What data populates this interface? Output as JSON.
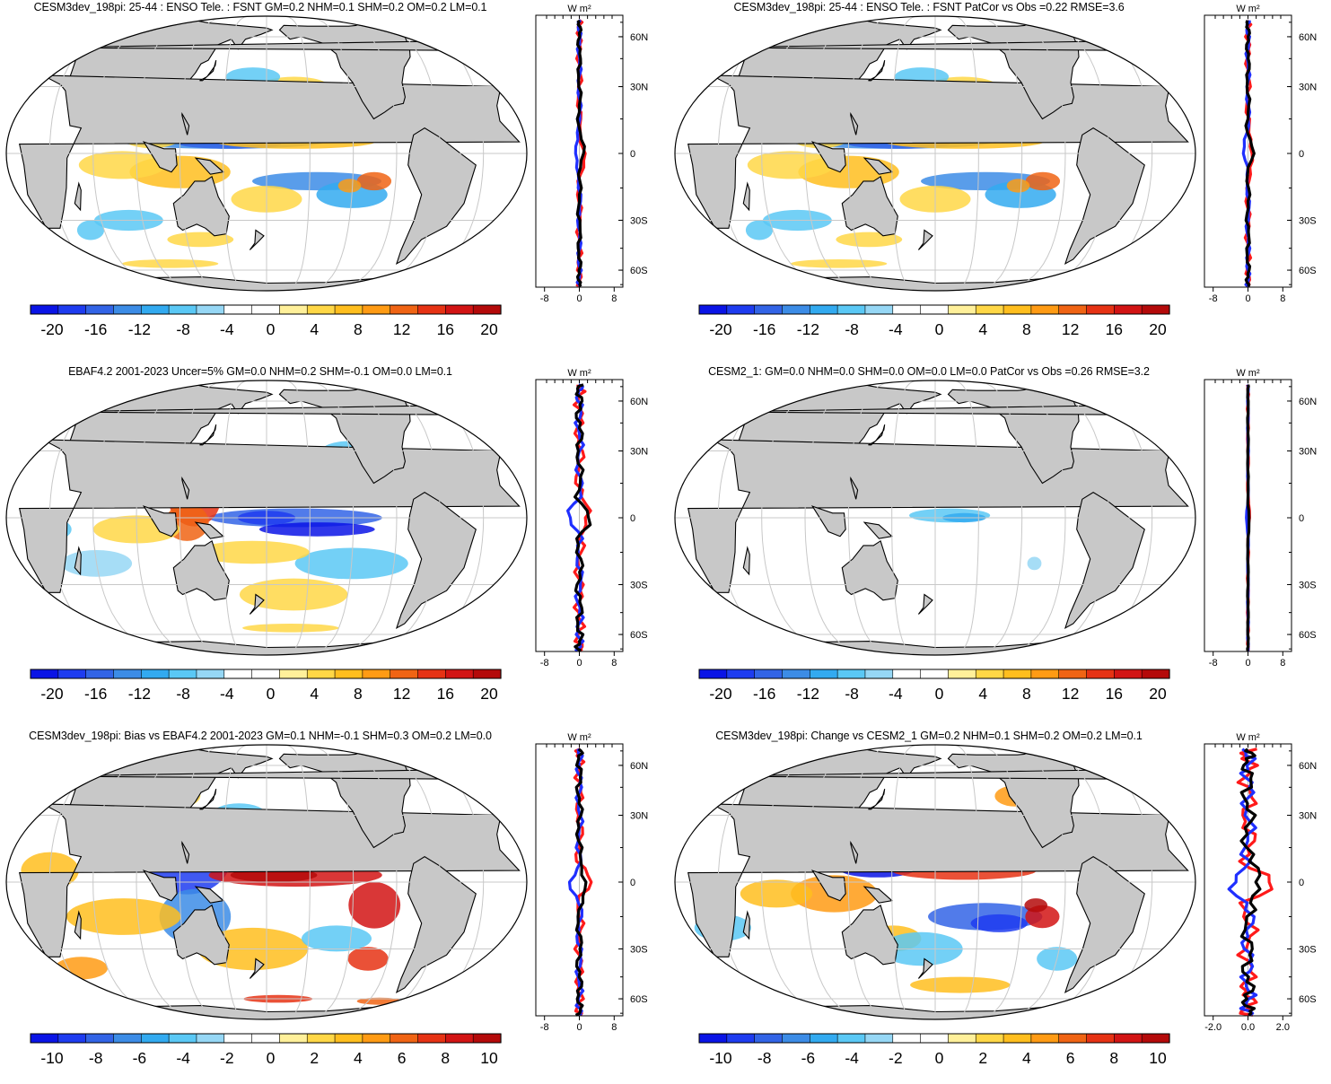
{
  "chart_data": [
    {
      "type": "heatmap",
      "title": "CESM3dev_198pi: 25-44 : ENSO Tele. : FSNT GM=0.2 NHM=0.1 SHM=0.2 OM=0.2 LM=0.1",
      "field": "FSNT ENSO teleconnection (model)",
      "lat_ticks": [
        "60N",
        "30N",
        "0",
        "30S",
        "60S"
      ],
      "units": "W m²",
      "colorbar": {
        "labels": [
          "-20",
          "-16",
          "-12",
          "-8",
          "-4",
          "0",
          "4",
          "8",
          "12",
          "16",
          "20"
        ]
      },
      "profile": {
        "xticks": [
          "-8",
          "0",
          "8"
        ],
        "xlim": [
          -10,
          10
        ],
        "series": [
          {
            "name": "black"
          },
          {
            "name": "blue"
          },
          {
            "name": "red"
          }
        ]
      }
    },
    {
      "type": "heatmap",
      "title": "CESM3dev_198pi: 25-44 : ENSO Tele. : FSNT PatCor vs Obs =0.22 RMSE=3.6",
      "field": "FSNT ENSO teleconnection (model repeated)",
      "lat_ticks": [
        "60N",
        "30N",
        "0",
        "30S",
        "60S"
      ],
      "units": "W m²",
      "colorbar": {
        "labels": [
          "-20",
          "-16",
          "-12",
          "-8",
          "-4",
          "0",
          "4",
          "8",
          "12",
          "16",
          "20"
        ]
      },
      "profile": {
        "xticks": [
          "-8",
          "0",
          "8"
        ],
        "xlim": [
          -10,
          10
        ],
        "series": [
          {
            "name": "black"
          },
          {
            "name": "blue"
          },
          {
            "name": "red"
          }
        ]
      }
    },
    {
      "type": "heatmap",
      "title": "EBAF4.2 2001-2023 Uncer=5% GM=0.0 NHM=0.2 SHM=-0.1 OM=0.0 LM=0.1",
      "field": "FSNT ENSO teleconnection (observed)",
      "lat_ticks": [
        "60N",
        "30N",
        "0",
        "30S",
        "60S"
      ],
      "units": "W m²",
      "colorbar": {
        "labels": [
          "-20",
          "-16",
          "-12",
          "-8",
          "-4",
          "0",
          "4",
          "8",
          "12",
          "16",
          "20"
        ]
      },
      "profile": {
        "xticks": [
          "-8",
          "0",
          "8"
        ],
        "xlim": [
          -10,
          10
        ],
        "series": [
          {
            "name": "black"
          },
          {
            "name": "blue"
          },
          {
            "name": "red"
          }
        ]
      }
    },
    {
      "type": "heatmap",
      "title": "CESM2_1: GM=0.0 NHM=0.0 SHM=0.0 OM=0.0 LM=0.0 PatCor vs Obs =0.26 RMSE=3.2",
      "field": "FSNT ENSO teleconnection (CESM2_1)",
      "lat_ticks": [
        "60N",
        "30N",
        "0",
        "30S",
        "60S"
      ],
      "units": "W m²",
      "colorbar": {
        "labels": [
          "-20",
          "-16",
          "-12",
          "-8",
          "-4",
          "0",
          "4",
          "8",
          "12",
          "16",
          "20"
        ]
      },
      "profile": {
        "xticks": [
          "-8",
          "0",
          "8"
        ],
        "xlim": [
          -10,
          10
        ],
        "series": [
          {
            "name": "black"
          },
          {
            "name": "blue"
          },
          {
            "name": "red"
          }
        ]
      }
    },
    {
      "type": "heatmap",
      "title": "CESM3dev_198pi: Bias vs EBAF4.2 2001-2023 GM=0.1 NHM=-0.1 SHM=0.3 OM=0.2 LM=0.0",
      "field": "FSNT bias",
      "lat_ticks": [
        "60N",
        "30N",
        "0",
        "30S",
        "60S"
      ],
      "units": "W m²",
      "colorbar": {
        "labels": [
          "-10",
          "-8",
          "-6",
          "-4",
          "-2",
          "0",
          "2",
          "4",
          "6",
          "8",
          "10"
        ]
      },
      "profile": {
        "xticks": [
          "-8",
          "0",
          "8"
        ],
        "xlim": [
          -10,
          10
        ],
        "series": [
          {
            "name": "black"
          },
          {
            "name": "blue"
          },
          {
            "name": "red"
          }
        ]
      }
    },
    {
      "type": "heatmap",
      "title": "CESM3dev_198pi: Change vs CESM2_1 GM=0.2 NHM=0.1 SHM=0.2 OM=0.2 LM=0.1",
      "field": "FSNT change",
      "lat_ticks": [
        "60N",
        "30N",
        "0",
        "30S",
        "60S"
      ],
      "units": "W m²",
      "colorbar": {
        "labels": [
          "-10",
          "-8",
          "-6",
          "-4",
          "-2",
          "0",
          "2",
          "4",
          "6",
          "8",
          "10"
        ]
      },
      "profile": {
        "xticks": [
          "-2.0",
          "0.0",
          "2.0"
        ],
        "xlim": [
          -2.5,
          2.5
        ],
        "series": [
          {
            "name": "black"
          },
          {
            "name": "blue"
          },
          {
            "name": "red"
          }
        ]
      }
    }
  ],
  "colors": {
    "land": "#c8c8c8",
    "grid": "#c8c8c8",
    "palette": [
      "#0a14e6",
      "#1e3cf0",
      "#3264e6",
      "#3c8ce6",
      "#32aaf0",
      "#5ac8f5",
      "#96d7f5",
      "#ffffff",
      "#ffffff",
      "#fff09a",
      "#ffd746",
      "#ffbe1e",
      "#ff9b14",
      "#f06414",
      "#e63214",
      "#d21414",
      "#b40a0a"
    ]
  }
}
